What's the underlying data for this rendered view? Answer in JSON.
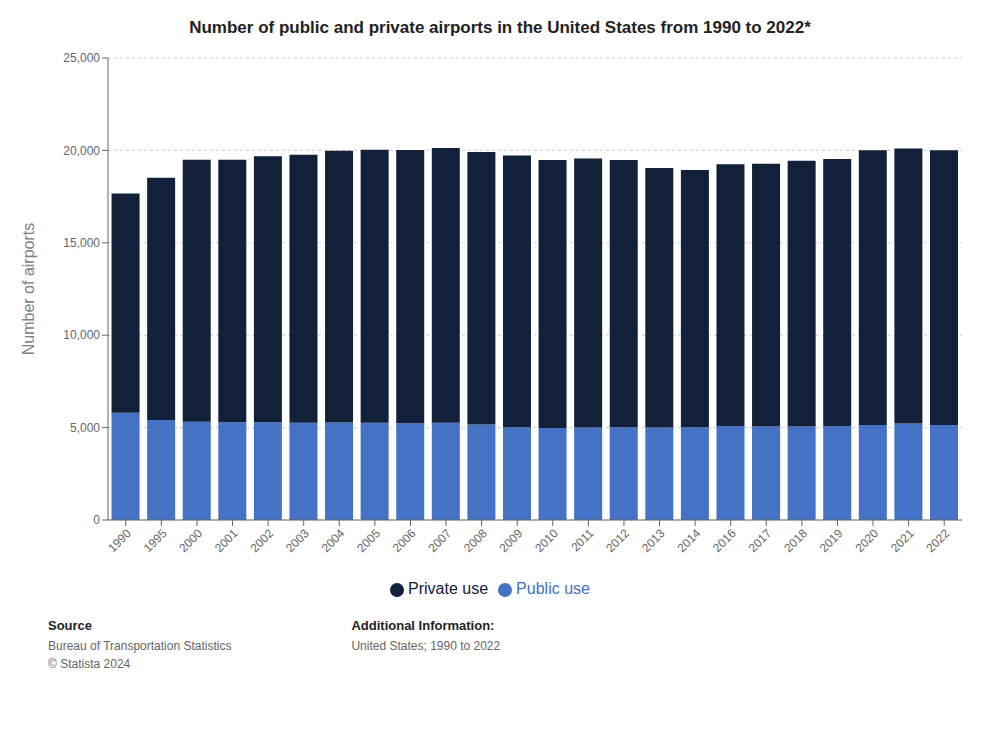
{
  "chart_data": {
    "type": "bar",
    "title": "Number of public and private airports in the United States from 1990 to 2022*",
    "categories": [
      "1990",
      "1995",
      "2000",
      "2001",
      "2002",
      "2003",
      "2004",
      "2005",
      "2006",
      "2007",
      "2008",
      "2009",
      "2010",
      "2011",
      "2012",
      "2013",
      "2014",
      "2016",
      "2017",
      "2018",
      "2019",
      "2020",
      "2021",
      "2022"
    ],
    "series": [
      {
        "name": "Public use",
        "color": "#4472c4",
        "values": [
          5800,
          5415,
          5317,
          5287,
          5285,
          5261,
          5281,
          5261,
          5233,
          5260,
          5174,
          5021,
          4977,
          5010,
          5013,
          5010,
          5013,
          5080,
          5060,
          5054,
          5080,
          5136,
          5217,
          5145
        ]
      },
      {
        "name": "Private use",
        "color": "#12203a",
        "values": [
          11864,
          13107,
          14177,
          14204,
          14399,
          14505,
          14695,
          14768,
          14793,
          14869,
          14746,
          14706,
          14498,
          14545,
          14467,
          14043,
          13930,
          14168,
          14221,
          14381,
          14455,
          14866,
          14888,
          14866
        ]
      }
    ],
    "ylabel": "Number of airports",
    "ylim": [
      0,
      25000
    ],
    "yticks": [
      0,
      {
        "value": 5000,
        "label": "5,000"
      },
      {
        "value": 10000,
        "label": "10,000"
      },
      {
        "value": 15000,
        "label": "15,000"
      },
      {
        "value": 20000,
        "label": "20,000"
      },
      {
        "value": 25000,
        "label": "25,000"
      }
    ],
    "stacked": true,
    "grid": true,
    "legend": "bottom",
    "annotations": [
      {
        "title": "Source",
        "lines": [
          "Bureau of Transportation Statistics",
          "© Statista 2024"
        ]
      },
      {
        "title": "Additional Information:",
        "lines": [
          "United States; 1990 to 2022"
        ]
      }
    ]
  }
}
